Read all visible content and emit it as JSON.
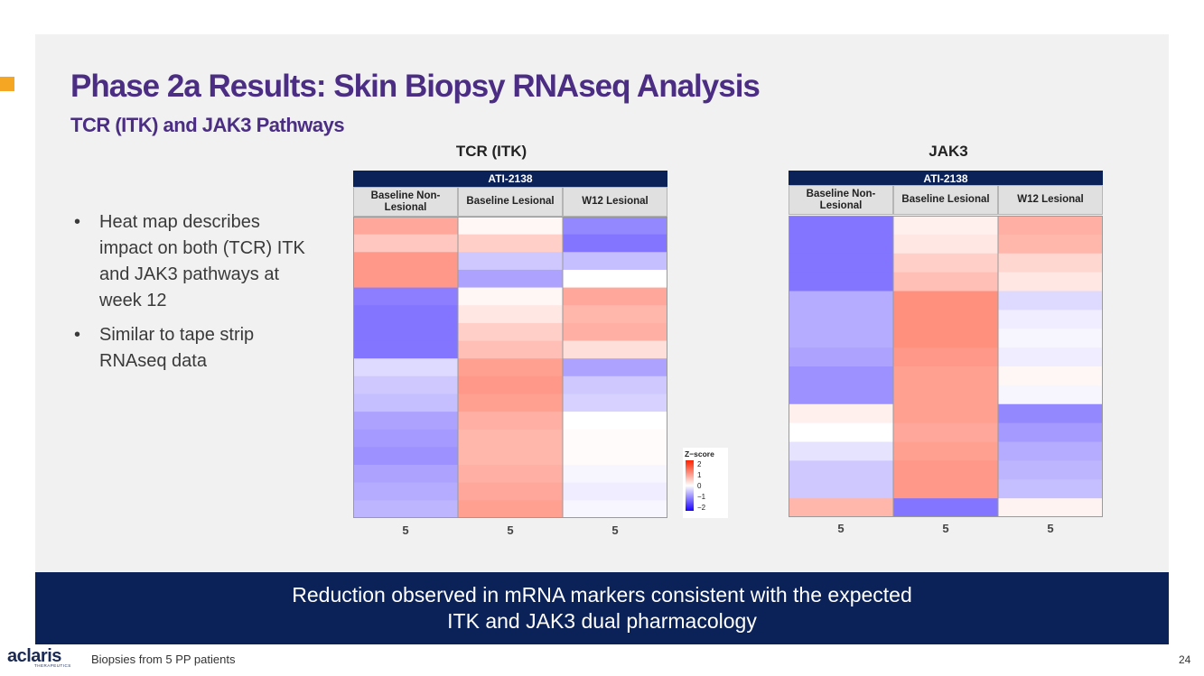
{
  "slide": {
    "title": "Phase 2a Results: Skin Biopsy RNAseq Analysis",
    "subtitle": "TCR (ITK) and JAK3 Pathways",
    "accent_color": "#f5a623",
    "title_color": "#4b2e83",
    "bullets": [
      "Heat map describes impact on both (TCR) ITK and JAK3 pathways at week 12",
      "Similar to tape strip RNAseq data"
    ],
    "bullet_glyph": "•",
    "banner": {
      "line1": "Reduction observed in mRNA markers consistent with the expected",
      "line2": "ITK and JAK3 dual pharmacology"
    },
    "footnote": "Biopsies from 5 PP patients",
    "page_number": "24",
    "logo_text": "aclaris",
    "logo_subtext": "THERAPEUTICS"
  },
  "legend": {
    "title": "Z−score",
    "ticks": [
      "2",
      "1",
      "0",
      "−1",
      "−2"
    ],
    "high_color": "#ff2200",
    "mid_color": "#ffffff",
    "low_color": "#1a00ff"
  },
  "chart_data": [
    {
      "type": "heatmap",
      "title": "TCR (ITK)",
      "group_label": "ATI-2138",
      "columns": [
        "Baseline Non-Lesional",
        "Baseline Lesional",
        "W12 Lesional"
      ],
      "n_per_column": [
        "5",
        "5",
        "5"
      ],
      "z_range": [
        -2,
        2
      ],
      "values": [
        [
          1.1,
          0.1,
          -1.3
        ],
        [
          0.7,
          0.6,
          -1.5
        ],
        [
          1.3,
          -0.6,
          -0.7
        ],
        [
          1.3,
          -1.0,
          0.0
        ],
        [
          -1.4,
          0.1,
          1.1
        ],
        [
          -1.5,
          0.3,
          0.9
        ],
        [
          -1.5,
          0.6,
          1.0
        ],
        [
          -1.5,
          0.8,
          0.4
        ],
        [
          -0.4,
          1.2,
          -1.0
        ],
        [
          -0.6,
          1.3,
          -0.6
        ],
        [
          -0.7,
          1.2,
          -0.5
        ],
        [
          -1.0,
          1.0,
          0.0
        ],
        [
          -1.1,
          0.9,
          0.05
        ],
        [
          -1.2,
          0.9,
          0.05
        ],
        [
          -1.0,
          1.0,
          -0.1
        ],
        [
          -0.9,
          1.1,
          -0.2
        ],
        [
          -0.8,
          1.2,
          -0.1
        ]
      ]
    },
    {
      "type": "heatmap",
      "title": "JAK3",
      "group_label": "ATI-2138",
      "columns": [
        "Baseline Non-Lesional",
        "Baseline Lesional",
        "W12 Lesional"
      ],
      "n_per_column": [
        "5",
        "5",
        "5"
      ],
      "z_range": [
        -2,
        2
      ],
      "values": [
        [
          -1.5,
          0.2,
          1.0
        ],
        [
          -1.5,
          0.3,
          0.9
        ],
        [
          -1.5,
          0.6,
          0.5
        ],
        [
          -1.5,
          0.8,
          0.3
        ],
        [
          -0.9,
          1.4,
          -0.4
        ],
        [
          -0.9,
          1.4,
          -0.2
        ],
        [
          -0.9,
          1.4,
          -0.1
        ],
        [
          -1.0,
          1.3,
          -0.2
        ],
        [
          -1.2,
          1.2,
          0.1
        ],
        [
          -1.2,
          1.2,
          -0.1
        ],
        [
          0.2,
          1.2,
          -1.3
        ],
        [
          0.0,
          1.1,
          -1.1
        ],
        [
          -0.3,
          1.2,
          -0.9
        ],
        [
          -0.6,
          1.3,
          -0.8
        ],
        [
          -0.6,
          1.3,
          -0.7
        ],
        [
          0.9,
          -1.5,
          0.15
        ]
      ]
    }
  ]
}
